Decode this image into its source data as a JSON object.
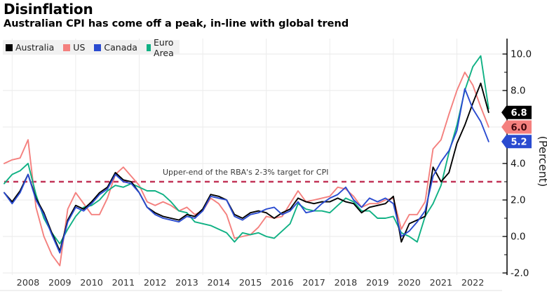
{
  "header": {
    "title": "Disinflation",
    "subtitle": "Australian CPI has come off a peak, in-line with global trend"
  },
  "legend": {
    "items": [
      {
        "label": "Australia",
        "color": "#000000"
      },
      {
        "label": "US",
        "color": "#f4807e"
      },
      {
        "label": "Canada",
        "color": "#2a4bd0"
      },
      {
        "label": "Euro Area",
        "color": "#10b184"
      }
    ]
  },
  "chart_data": {
    "type": "line",
    "title": "Disinflation",
    "subtitle": "Australian CPI has come off a peak, in-line with global trend",
    "x_unit": "quarterly CPI YoY, 2007Q4 to 2023Q1",
    "x_start": 2007.75,
    "x_step": 0.25,
    "x_tick_years": [
      2008,
      2009,
      2010,
      2011,
      2012,
      2013,
      2014,
      2015,
      2016,
      2017,
      2018,
      2019,
      2020,
      2021,
      2022
    ],
    "grid_years": [
      2008,
      2010,
      2012,
      2014,
      2016,
      2018,
      2020,
      2022
    ],
    "ylabel": "(Percent)",
    "ylim": [
      -2.9,
      10.9
    ],
    "y_ticks": [
      10.0,
      8.0,
      6.0,
      4.0,
      2.0,
      0.0,
      -2.0
    ],
    "grid": true,
    "legend_position": "top-left",
    "reference_line": {
      "value": 3.0,
      "label": "Upper-end of the RBA's 2-3% target for CPI",
      "color": "#c23558",
      "style": "dashed"
    },
    "series": [
      {
        "name": "Australia",
        "color": "#000000",
        "end_label": "6.8",
        "values": [
          2.4,
          1.9,
          2.5,
          3.4,
          2.1,
          1.3,
          0.2,
          -0.8,
          0.9,
          1.7,
          1.5,
          1.9,
          2.4,
          2.7,
          3.5,
          3.1,
          3.0,
          2.4,
          1.6,
          1.3,
          1.1,
          1.0,
          0.9,
          1.2,
          1.1,
          1.5,
          2.3,
          2.2,
          2.0,
          1.2,
          1.0,
          1.3,
          1.4,
          1.3,
          1.0,
          1.3,
          1.5,
          2.1,
          1.9,
          1.8,
          1.9,
          1.9,
          2.1,
          1.9,
          1.8,
          1.3,
          1.6,
          1.7,
          1.8,
          2.2,
          -0.3,
          0.7,
          0.9,
          1.1,
          3.8,
          3.0,
          3.5,
          5.1,
          6.1,
          7.3,
          8.4,
          6.8
        ]
      },
      {
        "name": "US",
        "color": "#f4807e",
        "end_label": "6.0",
        "values": [
          4.0,
          4.2,
          4.3,
          5.3,
          1.6,
          0.0,
          -1.0,
          -1.6,
          1.5,
          2.4,
          1.8,
          1.2,
          1.2,
          2.1,
          3.4,
          3.8,
          3.3,
          2.8,
          1.9,
          1.7,
          1.9,
          1.7,
          1.4,
          1.6,
          1.2,
          1.4,
          2.1,
          1.8,
          1.2,
          -0.1,
          0.0,
          0.1,
          0.5,
          1.1,
          1.0,
          1.1,
          1.8,
          2.5,
          1.9,
          2.0,
          2.1,
          2.2,
          2.7,
          2.6,
          2.2,
          1.6,
          1.8,
          1.8,
          2.0,
          2.1,
          0.4,
          1.2,
          1.2,
          1.9,
          4.8,
          5.3,
          6.7,
          8.0,
          9.0,
          8.3,
          7.1,
          6.0
        ]
      },
      {
        "name": "Canada",
        "color": "#2a4bd0",
        "end_label": "5.2",
        "values": [
          2.4,
          1.8,
          2.4,
          3.4,
          2.0,
          1.2,
          0.1,
          -0.9,
          0.8,
          1.6,
          1.4,
          1.8,
          2.3,
          2.6,
          3.4,
          3.0,
          2.9,
          2.4,
          1.6,
          1.2,
          1.0,
          0.9,
          0.8,
          1.1,
          1.0,
          1.4,
          2.2,
          2.1,
          2.0,
          1.1,
          0.9,
          1.2,
          1.3,
          1.5,
          1.6,
          1.2,
          1.4,
          1.9,
          1.3,
          1.4,
          1.8,
          2.1,
          2.3,
          2.7,
          2.0,
          1.6,
          2.1,
          1.9,
          2.1,
          1.8,
          0.0,
          0.3,
          0.8,
          1.4,
          3.3,
          4.1,
          4.7,
          5.8,
          8.1,
          7.0,
          6.3,
          5.2
        ]
      },
      {
        "name": "Euro Area",
        "color": "#10b184",
        "end_label": null,
        "values": [
          2.9,
          3.4,
          3.6,
          4.0,
          2.3,
          1.0,
          0.2,
          -0.4,
          0.4,
          1.1,
          1.6,
          1.7,
          2.0,
          2.5,
          2.8,
          2.7,
          2.9,
          2.7,
          2.5,
          2.5,
          2.3,
          1.9,
          1.4,
          1.3,
          0.8,
          0.7,
          0.6,
          0.4,
          0.2,
          -0.3,
          0.2,
          0.1,
          0.2,
          0.0,
          -0.1,
          0.3,
          0.7,
          1.8,
          1.5,
          1.4,
          1.4,
          1.3,
          1.7,
          2.1,
          1.9,
          1.4,
          1.4,
          1.0,
          1.0,
          1.1,
          0.2,
          0.0,
          -0.3,
          1.1,
          1.8,
          2.8,
          4.6,
          6.1,
          8.0,
          9.3,
          9.9,
          7.0
        ]
      }
    ],
    "draw_order": [
      1,
      3,
      0,
      2
    ],
    "end_badges": [
      {
        "label": "6.8",
        "value": 6.8,
        "bg": "#000000",
        "fg": "#ffffff"
      },
      {
        "label": "6.0",
        "value": 6.0,
        "bg": "#f4807e",
        "fg": "#40090f"
      },
      {
        "label": "5.2",
        "value": 5.2,
        "bg": "#2a4bd0",
        "fg": "#ffffff"
      }
    ]
  }
}
